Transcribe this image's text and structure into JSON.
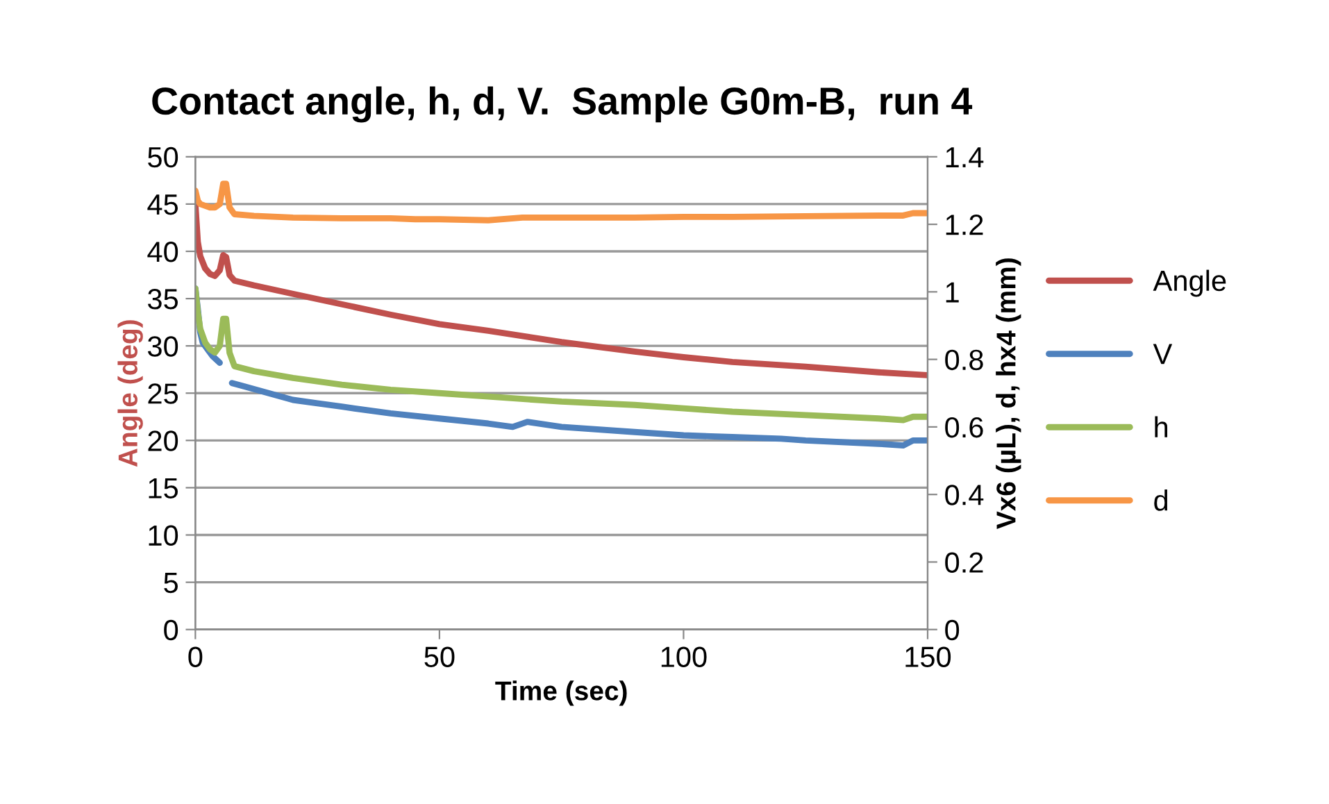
{
  "chart_data": {
    "type": "line",
    "title": "Contact angle, h, d, V.  Sample G0m-B,  run 4",
    "xlabel": "Time (sec)",
    "ylabel": "Angle (deg)",
    "y2label": "Vx6 (µL), d, hx4 (mm)",
    "xlim": [
      0,
      150
    ],
    "xticks": [
      0,
      50,
      100,
      150
    ],
    "ylim": [
      0,
      50
    ],
    "yticks": [
      0,
      5,
      10,
      15,
      20,
      25,
      30,
      35,
      40,
      45,
      50
    ],
    "y2lim": [
      0,
      1.4
    ],
    "y2ticks": [
      0,
      0.2,
      0.4,
      0.6,
      0.8,
      1,
      1.2,
      1.4
    ],
    "grid": "y",
    "legend": "right",
    "marker": "none",
    "line_style": "solid",
    "series": [
      {
        "name": "Angle",
        "color": "#c0504d",
        "x": [
          0,
          0.5,
          1,
          2,
          3,
          4,
          5,
          5.7,
          6.3,
          7,
          8,
          12,
          20,
          30,
          40,
          50,
          60,
          75,
          90,
          100,
          110,
          125,
          140,
          150
        ],
        "values": [
          45,
          41,
          39.5,
          38.2,
          37.6,
          37.4,
          38,
          39.6,
          39.4,
          37.5,
          36.9,
          36.4,
          35.5,
          34.4,
          33.3,
          32.3,
          31.6,
          30.4,
          29.4,
          28.8,
          28.3,
          27.8,
          27.2,
          26.9
        ]
      },
      {
        "name": "V",
        "color": "#4f81bd",
        "axis": "y2",
        "x": [
          0,
          0.5,
          1,
          1.5,
          2.5,
          3.5,
          5,
          5.5,
          7.5,
          10,
          15,
          20,
          25,
          30,
          40,
          50,
          60,
          65,
          68,
          75,
          90,
          100,
          110,
          120,
          125,
          140,
          145,
          147,
          150
        ],
        "values": [
          1.01,
          0.95,
          0.88,
          0.85,
          0.83,
          0.81,
          0.79,
          null,
          0.73,
          0.72,
          0.7,
          0.68,
          0.67,
          0.66,
          0.64,
          0.625,
          0.61,
          0.6,
          0.615,
          0.6,
          0.585,
          0.575,
          0.57,
          0.565,
          0.56,
          0.55,
          0.545,
          0.56,
          0.56
        ]
      },
      {
        "name": "h",
        "color": "#9bbb59",
        "axis": "y2",
        "x": [
          0,
          0.5,
          1,
          2,
          3,
          4,
          5,
          5.7,
          6.3,
          7,
          8,
          12,
          20,
          30,
          40,
          50,
          60,
          75,
          90,
          100,
          110,
          125,
          140,
          145,
          147,
          150
        ],
        "values": [
          1.01,
          0.94,
          0.89,
          0.85,
          0.83,
          0.82,
          0.84,
          0.92,
          0.92,
          0.82,
          0.78,
          0.765,
          0.745,
          0.725,
          0.71,
          0.7,
          0.69,
          0.675,
          0.665,
          0.655,
          0.645,
          0.635,
          0.625,
          0.62,
          0.63,
          0.63
        ]
      },
      {
        "name": "d",
        "color": "#f79646",
        "axis": "y2",
        "x": [
          0,
          0.5,
          1,
          2,
          3,
          4,
          5,
          5.7,
          6.3,
          7,
          8,
          12,
          20,
          30,
          40,
          45,
          50,
          60,
          67,
          75,
          90,
          100,
          110,
          125,
          140,
          145,
          147,
          150
        ],
        "values": [
          1.3,
          1.27,
          1.26,
          1.255,
          1.25,
          1.25,
          1.26,
          1.32,
          1.32,
          1.25,
          1.23,
          1.225,
          1.22,
          1.218,
          1.218,
          1.215,
          1.215,
          1.212,
          1.22,
          1.22,
          1.22,
          1.222,
          1.222,
          1.224,
          1.226,
          1.226,
          1.233,
          1.233
        ]
      }
    ]
  }
}
